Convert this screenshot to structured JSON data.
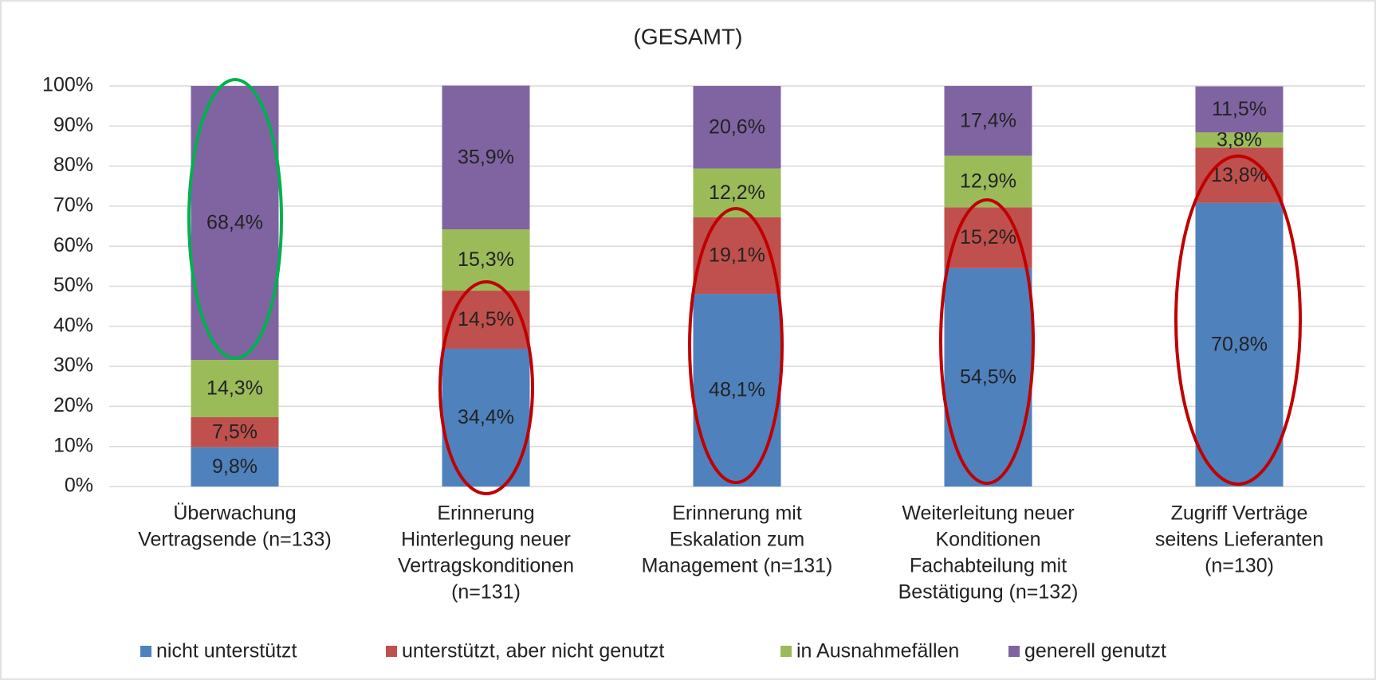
{
  "chart_data": {
    "type": "stacked_bar",
    "title": "(GESAMT)",
    "categories": [
      [
        "Überwachung",
        "Vertragsende (n=133)"
      ],
      [
        "Erinnerung",
        "Hinterlegung neuer",
        "Vertragskonditionen",
        "(n=131)"
      ],
      [
        "Erinnerung mit",
        "Eskalation zum",
        "Management (n=131)"
      ],
      [
        "Weiterleitung neuer",
        "Konditionen",
        "Fachabteilung mit",
        "Bestätigung (n=132)"
      ],
      [
        "Zugriff Verträge",
        "seitens Lieferanten",
        "(n=130)"
      ]
    ],
    "series": [
      {
        "name": "nicht unterstützt",
        "color": "#4f81bd",
        "values": [
          9.8,
          34.4,
          48.1,
          54.5,
          70.8
        ],
        "value_labels": [
          "9,8%",
          "34,4%",
          "48,1%",
          "54,5%",
          "70,8%"
        ]
      },
      {
        "name": "unterstützt, aber nicht genutzt",
        "color": "#c0504d",
        "values": [
          7.5,
          14.5,
          19.1,
          15.2,
          13.8
        ],
        "value_labels": [
          "7,5%",
          "14,5%",
          "19,1%",
          "15,2%",
          "13,8%"
        ]
      },
      {
        "name": "in Ausnahmefällen",
        "color": "#9bbb59",
        "values": [
          14.3,
          15.3,
          12.2,
          12.9,
          3.8
        ],
        "value_labels": [
          "14,3%",
          "15,3%",
          "12,2%",
          "12,9%",
          "3,8%"
        ]
      },
      {
        "name": "generell genutzt",
        "color": "#8064a2",
        "values": [
          68.4,
          35.9,
          20.6,
          17.4,
          11.5
        ],
        "value_labels": [
          "68,4%",
          "35,9%",
          "20,6%",
          "17,4%",
          "11,5%"
        ]
      }
    ],
    "ylim": [
      0,
      100
    ],
    "yticks": [
      {
        "value": 0,
        "label": "0%"
      },
      {
        "value": 10,
        "label": "10%"
      },
      {
        "value": 20,
        "label": "20%"
      },
      {
        "value": 30,
        "label": "30%"
      },
      {
        "value": 40,
        "label": "40%"
      },
      {
        "value": 50,
        "label": "50%"
      },
      {
        "value": 60,
        "label": "60%"
      },
      {
        "value": 70,
        "label": "70%"
      },
      {
        "value": 80,
        "label": "80%"
      },
      {
        "value": 90,
        "label": "90%"
      },
      {
        "value": 100,
        "label": "100%"
      }
    ],
    "grid": true,
    "legend": "bottom"
  }
}
